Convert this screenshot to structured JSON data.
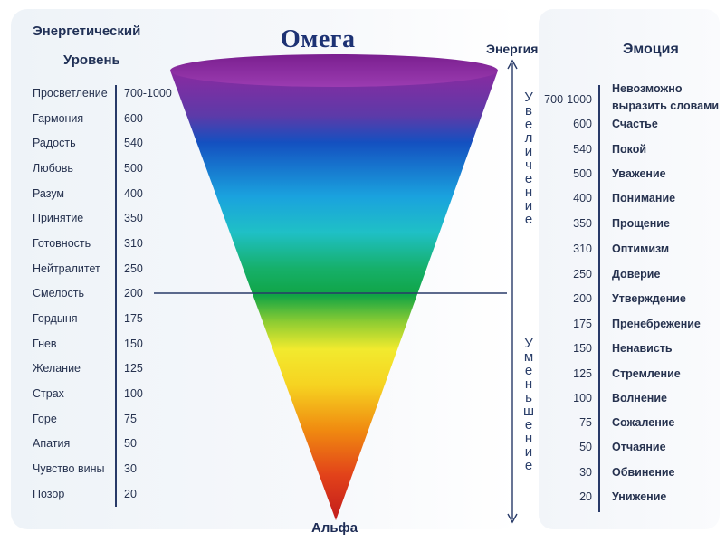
{
  "title": "Омега",
  "bottom_label": "Альфа",
  "left_header": [
    "Энергетический",
    "Уровень"
  ],
  "energy_header": "Энергия",
  "emotion_header": "Эмоция",
  "increase_text": "Увеличение",
  "decrease_text": "Уменьшение",
  "left_rows": [
    {
      "level": "Просветление",
      "value": "700-1000"
    },
    {
      "level": "Гармония",
      "value": "600"
    },
    {
      "level": "Радость",
      "value": "540"
    },
    {
      "level": "Любовь",
      "value": "500"
    },
    {
      "level": "Разум",
      "value": "400"
    },
    {
      "level": "Принятие",
      "value": "350"
    },
    {
      "level": "Готовность",
      "value": "310"
    },
    {
      "level": "Нейтралитет",
      "value": "250"
    },
    {
      "level": "Смелость",
      "value": "200"
    },
    {
      "level": "Гордыня",
      "value": "175"
    },
    {
      "level": "Гнев",
      "value": "150"
    },
    {
      "level": "Желание",
      "value": "125"
    },
    {
      "level": "Страх",
      "value": "100"
    },
    {
      "level": "Горе",
      "value": "75"
    },
    {
      "level": "Апатия",
      "value": "50"
    },
    {
      "level": "Чувство вины",
      "value": "30"
    },
    {
      "level": "Позор",
      "value": "20"
    }
  ],
  "right_rows": [
    {
      "value": "700-1000",
      "emotion": [
        "Невозможно",
        "выразить словами"
      ]
    },
    {
      "value": "600",
      "emotion": [
        "Счастье"
      ]
    },
    {
      "value": "540",
      "emotion": [
        "Покой"
      ]
    },
    {
      "value": "500",
      "emotion": [
        "Уважение"
      ]
    },
    {
      "value": "400",
      "emotion": [
        "Понимание"
      ]
    },
    {
      "value": "350",
      "emotion": [
        "Прощение"
      ]
    },
    {
      "value": "310",
      "emotion": [
        "Оптимизм"
      ]
    },
    {
      "value": "250",
      "emotion": [
        "Доверие"
      ]
    },
    {
      "value": "200",
      "emotion": [
        "Утверждение"
      ]
    },
    {
      "value": "175",
      "emotion": [
        "Пренебрежение"
      ]
    },
    {
      "value": "150",
      "emotion": [
        "Ненависть"
      ]
    },
    {
      "value": "125",
      "emotion": [
        "Стремление"
      ]
    },
    {
      "value": "100",
      "emotion": [
        "Волнение"
      ]
    },
    {
      "value": "75",
      "emotion": [
        "Сожаление"
      ]
    },
    {
      "value": "50",
      "emotion": [
        "Отчаяние"
      ]
    },
    {
      "value": "30",
      "emotion": [
        "Обвинение"
      ]
    },
    {
      "value": "20",
      "emotion": [
        "Унижение"
      ]
    }
  ],
  "colors": {
    "cone_top": "#8a2aa0",
    "cone_blue": "#1450c0",
    "cone_cyan": "#1ab7d9",
    "cone_green": "#10a445",
    "cone_yellow": "#f2ea2e",
    "cone_orange": "#f08a10",
    "cone_red": "#c21c1c",
    "lines": "#283a68"
  }
}
